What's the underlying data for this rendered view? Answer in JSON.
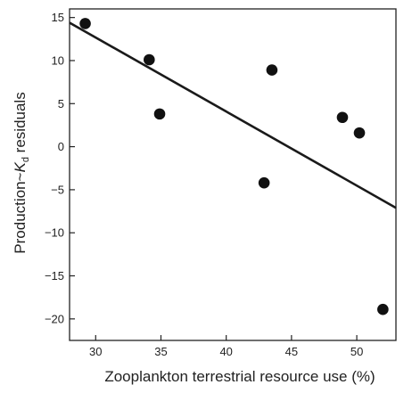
{
  "chart_data": {
    "type": "scatter",
    "xlabel": "Zooplankton terrestrial resource use (%)",
    "ylabel_prefix": "Production~",
    "ylabel_var": "K",
    "ylabel_sub": "d",
    "ylabel_suffix": " residuals",
    "xlim": [
      28,
      53
    ],
    "ylim": [
      -22.5,
      16
    ],
    "xticks": [
      30,
      35,
      40,
      45,
      50
    ],
    "yticks": [
      15,
      10,
      5,
      0,
      -5,
      -10,
      -15,
      -20
    ],
    "ytick_labels": [
      "15",
      "10",
      "5",
      "0",
      "−5",
      "−10",
      "−15",
      "−20"
    ],
    "points": [
      {
        "x": 29.2,
        "y": 14.3
      },
      {
        "x": 34.1,
        "y": 10.1
      },
      {
        "x": 34.9,
        "y": 3.8
      },
      {
        "x": 42.9,
        "y": -4.2
      },
      {
        "x": 43.5,
        "y": 8.9
      },
      {
        "x": 48.9,
        "y": 3.4
      },
      {
        "x": 50.2,
        "y": 1.6
      },
      {
        "x": 52.0,
        "y": -18.9
      }
    ],
    "fit_line": {
      "x": [
        28,
        53
      ],
      "y": [
        14.4,
        -7.1
      ]
    },
    "grid": false,
    "legend": "none"
  }
}
